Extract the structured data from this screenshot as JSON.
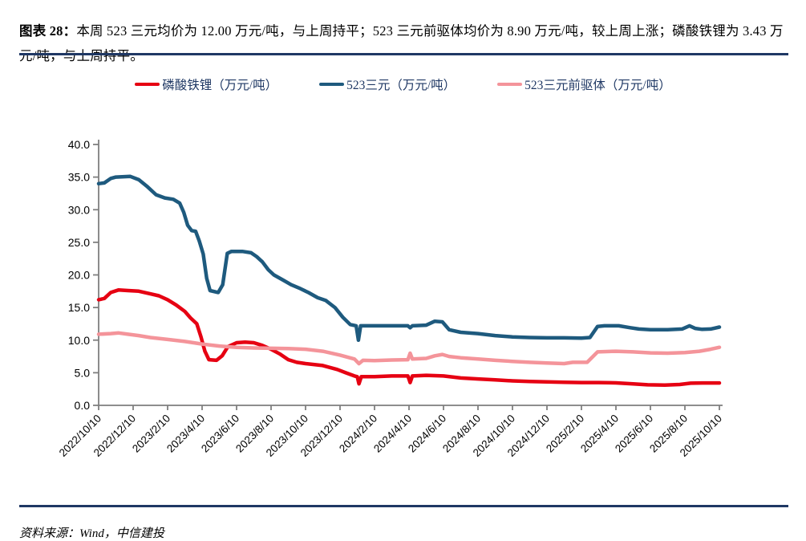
{
  "title": {
    "prefix": "图表 28：",
    "text": "本周 523 三元均价为 12.00 万元/吨，与上周持平；523 三元前驱体均价为 8.90 万元/吨，较上周上涨；磷酸铁锂为 3.43 万元/吨，与上周持平。"
  },
  "footer": {
    "source": "资料来源：Wind，中信建投"
  },
  "colors": {
    "rule": "#1f3864",
    "red": "#e60012",
    "blue": "#1e5a7e",
    "pink": "#f4949a",
    "axis": "#7f7f7f",
    "tick_text": "#000000",
    "legend_text": "#1f3864"
  },
  "chart_data": {
    "type": "line",
    "title": "",
    "xlabel": "",
    "ylabel": "",
    "ylim": [
      0,
      40
    ],
    "ytick_step": 5,
    "grid": false,
    "legend_position": "top",
    "ytick_labels": [
      "0.0",
      "5.0",
      "10.0",
      "15.0",
      "20.0",
      "25.0",
      "30.0",
      "35.0",
      "40.0"
    ],
    "xtick_labels": [
      "2022/10/10",
      "2022/12/10",
      "2023/2/10",
      "2023/4/10",
      "2023/6/10",
      "2023/8/10",
      "2023/10/10",
      "2023/12/10",
      "2024/2/10",
      "2024/4/10",
      "2024/6/10",
      "2024/8/10",
      "2024/10/10",
      "2024/12/10",
      "2025/2/10",
      "2025/4/10",
      "2025/6/10",
      "2025/8/10",
      "2025/10/10"
    ],
    "x_start": [
      2022,
      10,
      10
    ],
    "x_end": [
      2025,
      10,
      10
    ],
    "series": [
      {
        "name": "磷酸铁锂（万元/吨）",
        "color_key": "red",
        "latest_value": 3.43,
        "points": [
          [
            2022,
            10,
            10,
            16.2
          ],
          [
            2022,
            10,
            20,
            16.4
          ],
          [
            2022,
            11,
            1,
            17.3
          ],
          [
            2022,
            11,
            15,
            17.7
          ],
          [
            2022,
            12,
            1,
            17.6
          ],
          [
            2022,
            12,
            20,
            17.5
          ],
          [
            2023,
            1,
            10,
            17.1
          ],
          [
            2023,
            1,
            25,
            16.8
          ],
          [
            2023,
            2,
            10,
            16.2
          ],
          [
            2023,
            2,
            25,
            15.4
          ],
          [
            2023,
            3,
            10,
            14.4
          ],
          [
            2023,
            3,
            20,
            13.4
          ],
          [
            2023,
            3,
            31,
            12.5
          ],
          [
            2023,
            4,
            8,
            10.5
          ],
          [
            2023,
            4,
            15,
            8.3
          ],
          [
            2023,
            4,
            22,
            7.0
          ],
          [
            2023,
            5,
            5,
            6.9
          ],
          [
            2023,
            5,
            15,
            7.6
          ],
          [
            2023,
            5,
            25,
            9.0
          ],
          [
            2023,
            6,
            10,
            9.6
          ],
          [
            2023,
            6,
            25,
            9.7
          ],
          [
            2023,
            7,
            10,
            9.6
          ],
          [
            2023,
            7,
            25,
            9.2
          ],
          [
            2023,
            8,
            10,
            8.6
          ],
          [
            2023,
            8,
            25,
            7.9
          ],
          [
            2023,
            9,
            10,
            7.0
          ],
          [
            2023,
            9,
            25,
            6.6
          ],
          [
            2023,
            10,
            10,
            6.4
          ],
          [
            2023,
            11,
            10,
            6.1
          ],
          [
            2023,
            12,
            5,
            5.5
          ],
          [
            2023,
            12,
            20,
            5.0
          ],
          [
            2024,
            1,
            5,
            4.5
          ],
          [
            2024,
            1,
            10,
            4.4
          ],
          [
            2024,
            1,
            13,
            3.3
          ],
          [
            2024,
            1,
            17,
            4.4
          ],
          [
            2024,
            2,
            10,
            4.4
          ],
          [
            2024,
            3,
            10,
            4.5
          ],
          [
            2024,
            4,
            8,
            4.5
          ],
          [
            2024,
            4,
            12,
            3.5
          ],
          [
            2024,
            4,
            16,
            4.5
          ],
          [
            2024,
            5,
            10,
            4.6
          ],
          [
            2024,
            6,
            10,
            4.5
          ],
          [
            2024,
            7,
            10,
            4.2
          ],
          [
            2024,
            8,
            10,
            4.05
          ],
          [
            2024,
            9,
            10,
            3.9
          ],
          [
            2024,
            10,
            10,
            3.75
          ],
          [
            2024,
            11,
            10,
            3.65
          ],
          [
            2024,
            12,
            10,
            3.6
          ],
          [
            2025,
            1,
            10,
            3.55
          ],
          [
            2025,
            2,
            10,
            3.5
          ],
          [
            2025,
            3,
            10,
            3.5
          ],
          [
            2025,
            4,
            10,
            3.45
          ],
          [
            2025,
            5,
            10,
            3.3
          ],
          [
            2025,
            6,
            5,
            3.15
          ],
          [
            2025,
            7,
            5,
            3.1
          ],
          [
            2025,
            8,
            1,
            3.2
          ],
          [
            2025,
            8,
            20,
            3.4
          ],
          [
            2025,
            9,
            10,
            3.43
          ],
          [
            2025,
            10,
            10,
            3.43
          ]
        ]
      },
      {
        "name": "523三元（万元/吨）",
        "color_key": "blue",
        "latest_value": 12.0,
        "points": [
          [
            2022,
            10,
            10,
            34.0
          ],
          [
            2022,
            10,
            20,
            34.1
          ],
          [
            2022,
            11,
            1,
            34.8
          ],
          [
            2022,
            11,
            10,
            35.0
          ],
          [
            2022,
            12,
            5,
            35.1
          ],
          [
            2022,
            12,
            20,
            34.6
          ],
          [
            2023,
            1,
            5,
            33.5
          ],
          [
            2023,
            1,
            20,
            32.3
          ],
          [
            2023,
            2,
            5,
            31.8
          ],
          [
            2023,
            2,
            20,
            31.6
          ],
          [
            2023,
            3,
            1,
            31.0
          ],
          [
            2023,
            3,
            8,
            29.6
          ],
          [
            2023,
            3,
            15,
            27.6
          ],
          [
            2023,
            3,
            22,
            26.8
          ],
          [
            2023,
            3,
            29,
            26.7
          ],
          [
            2023,
            4,
            5,
            25.2
          ],
          [
            2023,
            4,
            12,
            23.2
          ],
          [
            2023,
            4,
            18,
            19.5
          ],
          [
            2023,
            4,
            24,
            17.6
          ],
          [
            2023,
            5,
            8,
            17.3
          ],
          [
            2023,
            5,
            16,
            18.5
          ],
          [
            2023,
            5,
            24,
            23.3
          ],
          [
            2023,
            6,
            1,
            23.6
          ],
          [
            2023,
            6,
            20,
            23.6
          ],
          [
            2023,
            7,
            5,
            23.4
          ],
          [
            2023,
            7,
            15,
            22.8
          ],
          [
            2023,
            7,
            25,
            22.0
          ],
          [
            2023,
            8,
            5,
            20.8
          ],
          [
            2023,
            8,
            15,
            20.0
          ],
          [
            2023,
            9,
            1,
            19.2
          ],
          [
            2023,
            9,
            15,
            18.5
          ],
          [
            2023,
            10,
            1,
            17.9
          ],
          [
            2023,
            10,
            15,
            17.3
          ],
          [
            2023,
            11,
            1,
            16.5
          ],
          [
            2023,
            11,
            15,
            16.1
          ],
          [
            2023,
            12,
            1,
            15.0
          ],
          [
            2023,
            12,
            15,
            13.5
          ],
          [
            2023,
            12,
            28,
            12.4
          ],
          [
            2024,
            1,
            8,
            12.2
          ],
          [
            2024,
            1,
            12,
            10.0
          ],
          [
            2024,
            1,
            16,
            12.2
          ],
          [
            2024,
            2,
            10,
            12.2
          ],
          [
            2024,
            3,
            10,
            12.2
          ],
          [
            2024,
            4,
            8,
            12.2
          ],
          [
            2024,
            4,
            12,
            11.9
          ],
          [
            2024,
            4,
            16,
            12.2
          ],
          [
            2024,
            5,
            10,
            12.3
          ],
          [
            2024,
            5,
            25,
            12.9
          ],
          [
            2024,
            6,
            8,
            12.8
          ],
          [
            2024,
            6,
            20,
            11.6
          ],
          [
            2024,
            7,
            10,
            11.2
          ],
          [
            2024,
            8,
            10,
            11.0
          ],
          [
            2024,
            9,
            10,
            10.7
          ],
          [
            2024,
            10,
            10,
            10.5
          ],
          [
            2024,
            11,
            10,
            10.4
          ],
          [
            2024,
            12,
            10,
            10.35
          ],
          [
            2025,
            1,
            10,
            10.35
          ],
          [
            2025,
            2,
            10,
            10.3
          ],
          [
            2025,
            2,
            25,
            10.4
          ],
          [
            2025,
            3,
            8,
            12.1
          ],
          [
            2025,
            3,
            20,
            12.2
          ],
          [
            2025,
            4,
            15,
            12.2
          ],
          [
            2025,
            5,
            5,
            11.9
          ],
          [
            2025,
            5,
            20,
            11.7
          ],
          [
            2025,
            6,
            10,
            11.6
          ],
          [
            2025,
            7,
            10,
            11.6
          ],
          [
            2025,
            8,
            5,
            11.7
          ],
          [
            2025,
            8,
            18,
            12.2
          ],
          [
            2025,
            8,
            28,
            11.8
          ],
          [
            2025,
            9,
            10,
            11.65
          ],
          [
            2025,
            9,
            25,
            11.7
          ],
          [
            2025,
            10,
            10,
            12.0
          ]
        ]
      },
      {
        "name": "523三元前驱体（万元/吨）",
        "color_key": "pink",
        "latest_value": 8.9,
        "points": [
          [
            2022,
            10,
            10,
            10.9
          ],
          [
            2022,
            11,
            1,
            11.0
          ],
          [
            2022,
            11,
            15,
            11.1
          ],
          [
            2022,
            12,
            1,
            10.9
          ],
          [
            2022,
            12,
            20,
            10.7
          ],
          [
            2023,
            1,
            10,
            10.4
          ],
          [
            2023,
            2,
            10,
            10.1
          ],
          [
            2023,
            3,
            10,
            9.8
          ],
          [
            2023,
            4,
            10,
            9.4
          ],
          [
            2023,
            5,
            10,
            9.1
          ],
          [
            2023,
            6,
            10,
            8.9
          ],
          [
            2023,
            7,
            10,
            8.8
          ],
          [
            2023,
            8,
            10,
            8.75
          ],
          [
            2023,
            9,
            10,
            8.7
          ],
          [
            2023,
            10,
            10,
            8.6
          ],
          [
            2023,
            11,
            10,
            8.3
          ],
          [
            2023,
            12,
            10,
            7.7
          ],
          [
            2024,
            1,
            5,
            7.1
          ],
          [
            2024,
            1,
            13,
            6.4
          ],
          [
            2024,
            1,
            20,
            6.9
          ],
          [
            2024,
            2,
            10,
            6.85
          ],
          [
            2024,
            3,
            10,
            6.95
          ],
          [
            2024,
            4,
            8,
            7.0
          ],
          [
            2024,
            4,
            12,
            8.0
          ],
          [
            2024,
            4,
            16,
            7.1
          ],
          [
            2024,
            5,
            10,
            7.2
          ],
          [
            2024,
            5,
            25,
            7.6
          ],
          [
            2024,
            6,
            8,
            7.8
          ],
          [
            2024,
            6,
            20,
            7.5
          ],
          [
            2024,
            7,
            10,
            7.3
          ],
          [
            2024,
            8,
            10,
            7.1
          ],
          [
            2024,
            9,
            10,
            6.9
          ],
          [
            2024,
            10,
            10,
            6.75
          ],
          [
            2024,
            11,
            10,
            6.6
          ],
          [
            2024,
            12,
            10,
            6.5
          ],
          [
            2025,
            1,
            10,
            6.4
          ],
          [
            2025,
            1,
            25,
            6.6
          ],
          [
            2025,
            2,
            20,
            6.6
          ],
          [
            2025,
            3,
            8,
            8.2
          ],
          [
            2025,
            4,
            10,
            8.3
          ],
          [
            2025,
            5,
            10,
            8.2
          ],
          [
            2025,
            6,
            10,
            8.05
          ],
          [
            2025,
            7,
            10,
            8.0
          ],
          [
            2025,
            8,
            10,
            8.1
          ],
          [
            2025,
            9,
            5,
            8.3
          ],
          [
            2025,
            9,
            25,
            8.6
          ],
          [
            2025,
            10,
            10,
            8.9
          ]
        ]
      }
    ]
  }
}
